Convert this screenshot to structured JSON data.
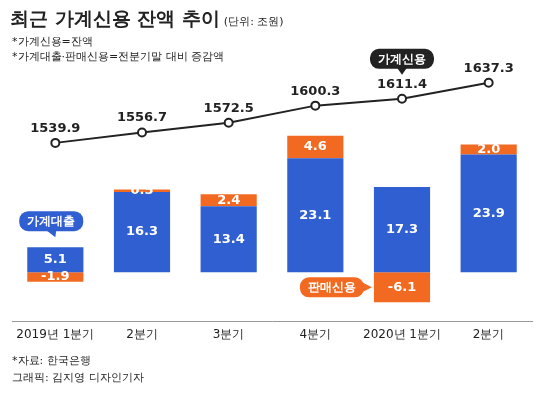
{
  "chart_data": {
    "type": "bar",
    "title": "최근 가계신용 잔액 추이",
    "subtitle": "(단위: 조원)",
    "notes": [
      "*가계신용=잔액",
      "*가계대출·판매신용=전분기말 대비 증감액"
    ],
    "source": "*자료: 한국은행",
    "credit": "그래픽: 김지영 디자인기자",
    "categories": [
      "2019년 1분기",
      "2분기",
      "3분기",
      "4분기",
      "2020년 1분기",
      "2분기"
    ],
    "series": [
      {
        "name": "가계대출",
        "type": "bar",
        "color": "#2f5fd0",
        "values": [
          5.1,
          16.3,
          13.4,
          23.1,
          17.3,
          23.9
        ]
      },
      {
        "name": "판매신용",
        "type": "bar",
        "color": "#f26a22",
        "values": [
          -1.9,
          0.5,
          2.4,
          4.6,
          -6.1,
          2.0
        ],
        "value_labels": [
          "-1.9",
          "0.5",
          "2.4",
          "4.6",
          "-6.1",
          "2.0"
        ]
      },
      {
        "name": "가계신용",
        "type": "line",
        "axis": "y2",
        "color": "#222222",
        "marker": "circle",
        "values": [
          1539.9,
          1556.7,
          1572.5,
          1600.3,
          1611.4,
          1637.3
        ]
      }
    ],
    "stacked": true,
    "data_labels": true,
    "tick_labels": "x",
    "grid": false,
    "ylim": [
      -10,
      40
    ],
    "yticks": [
      -10,
      0,
      10,
      20,
      30,
      40
    ],
    "y2lim": [
      1250,
      1650
    ],
    "y2ticks": [
      1250,
      1350,
      1450,
      1550,
      1650
    ]
  }
}
